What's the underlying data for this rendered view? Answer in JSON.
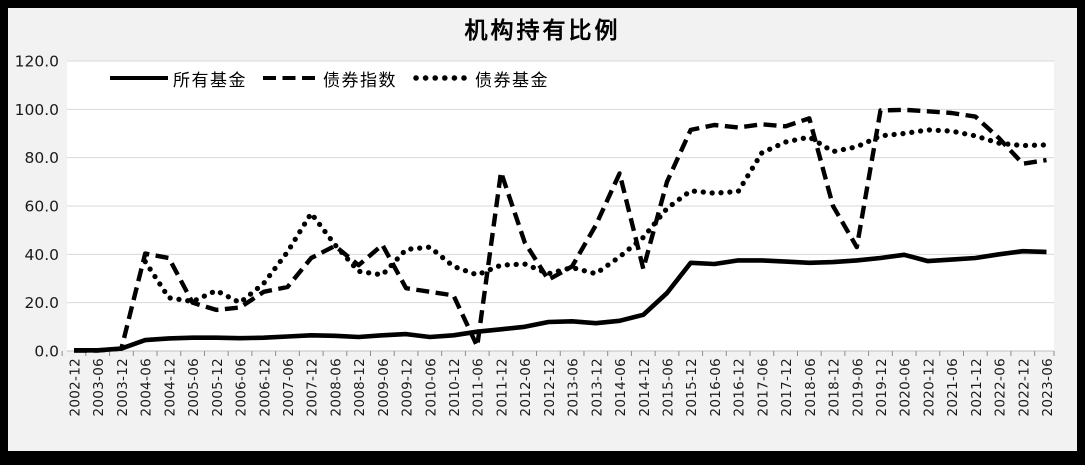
{
  "chart": {
    "title": "机构持有比例"
  },
  "colors": {
    "series": "#000000",
    "grid": "#d9d9d9",
    "axis": "#bfbfbf",
    "tick": "#8c8c8c",
    "plot_bg": "#ffffff",
    "outer_bg": "#f2f2f2",
    "frame_border": "#000000",
    "text": "#1a1a1a"
  },
  "chart_data": {
    "type": "line",
    "title": "机构持有比例",
    "xlabel": "",
    "ylabel": "",
    "ylim": [
      0,
      120
    ],
    "grid": true,
    "legend_position": "top-inside-left",
    "y_ticks": [
      "0.0",
      "20.0",
      "40.0",
      "60.0",
      "80.0",
      "100.0",
      "120.0"
    ],
    "categories": [
      "2002-12",
      "2003-06",
      "2003-12",
      "2004-06",
      "2004-12",
      "2005-06",
      "2005-12",
      "2006-06",
      "2006-12",
      "2007-06",
      "2007-12",
      "2008-06",
      "2008-12",
      "2009-06",
      "2009-12",
      "2010-06",
      "2010-12",
      "2011-06",
      "2011-12",
      "2012-06",
      "2012-12",
      "2013-06",
      "2013-12",
      "2014-06",
      "2014-12",
      "2015-06",
      "2015-12",
      "2016-06",
      "2016-12",
      "2017-06",
      "2017-12",
      "2018-06",
      "2018-12",
      "2019-06",
      "2019-12",
      "2020-06",
      "2020-12",
      "2021-06",
      "2021-12",
      "2022-06",
      "2022-12",
      "2023-06"
    ],
    "series": [
      {
        "name": "所有基金",
        "style": "solid",
        "values": [
          0.3,
          0.3,
          1.0,
          4.5,
          5.2,
          5.5,
          5.5,
          5.3,
          5.5,
          6.0,
          6.5,
          6.3,
          5.8,
          6.5,
          7.0,
          5.8,
          6.5,
          8.0,
          9.0,
          10.0,
          12.0,
          12.3,
          11.5,
          12.5,
          15.0,
          24.0,
          36.5,
          36.0,
          37.5,
          37.5,
          37.0,
          36.5,
          36.8,
          37.5,
          38.5,
          39.8,
          37.2,
          37.8,
          38.5,
          40.0,
          41.3,
          41.0
        ]
      },
      {
        "name": "债券指数",
        "style": "dashed",
        "values": [
          0.2,
          0.2,
          1.0,
          40.3,
          38.5,
          20.0,
          17.0,
          18.0,
          24.5,
          26.5,
          38.5,
          43.5,
          35.5,
          43.9,
          26.0,
          24.5,
          23.0,
          2.0,
          74.0,
          45.0,
          29.5,
          35.0,
          52.0,
          73.5,
          34.0,
          70.0,
          91.5,
          93.5,
          92.5,
          93.8,
          93.0,
          96.3,
          60.0,
          43.0,
          99.5,
          99.8,
          99.2,
          98.5,
          97.0,
          88.0,
          77.5,
          79.0
        ]
      },
      {
        "name": "债券基金",
        "style": "dotted",
        "values": [
          null,
          null,
          null,
          37.0,
          22.0,
          20.5,
          25.0,
          20.0,
          28.0,
          41.0,
          57.0,
          44.0,
          33.0,
          31.5,
          42.0,
          43.0,
          35.0,
          31.5,
          35.5,
          36.0,
          32.0,
          34.5,
          32.0,
          39.0,
          47.0,
          59.0,
          66.3,
          65.3,
          66.0,
          82.0,
          86.5,
          88.5,
          82.5,
          84.5,
          89.0,
          90.0,
          91.5,
          91.0,
          89.0,
          86.0,
          85.0,
          85.3
        ]
      }
    ]
  }
}
